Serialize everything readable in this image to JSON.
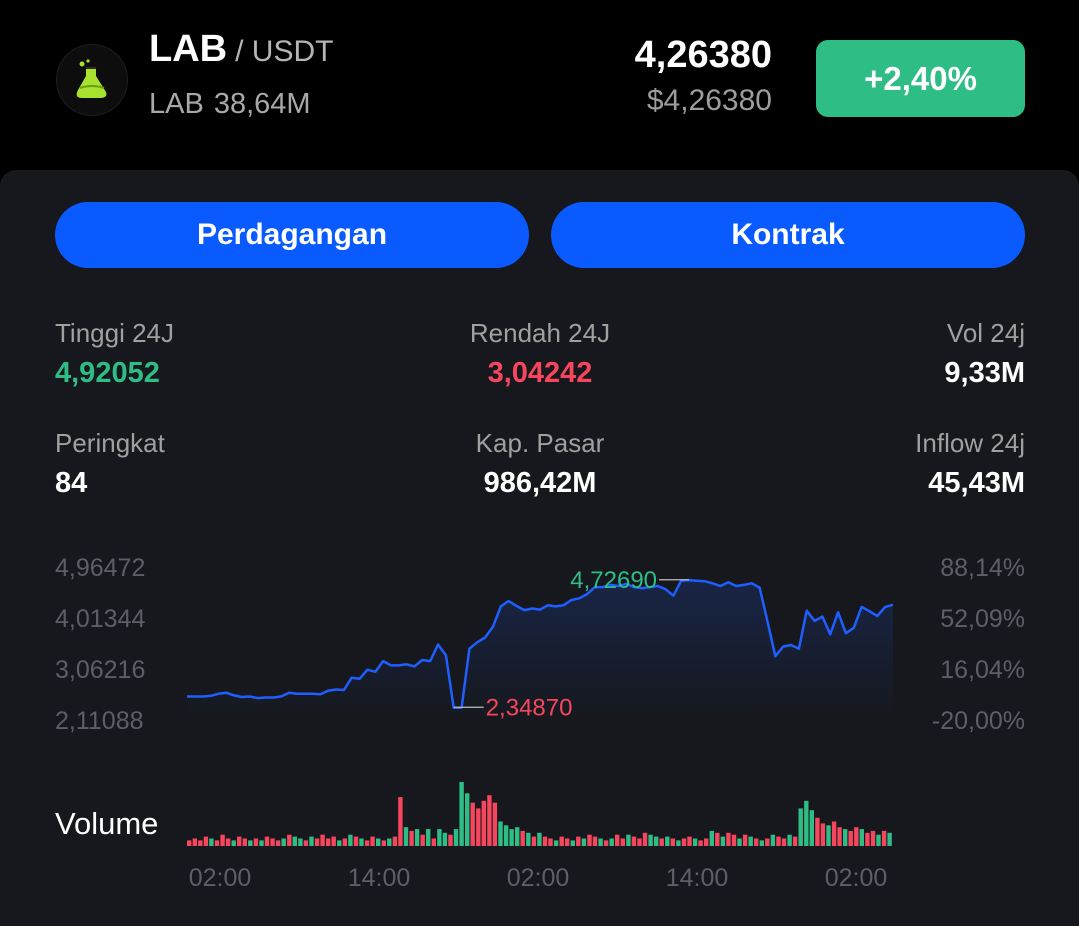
{
  "header": {
    "base": "LAB",
    "quote": "/ USDT",
    "supply_symbol": "LAB",
    "supply_value": "38,64M",
    "price": "4,26380",
    "price_usd": "$4,26380",
    "change": "+2,40%",
    "logo_icon": "flask-icon"
  },
  "actions": {
    "trade_label": "Perdagangan",
    "contract_label": "Kontrak"
  },
  "stats": {
    "high_label": "Tinggi 24J",
    "high_value": "4,92052",
    "low_label": "Rendah 24J",
    "low_value": "3,04242",
    "vol_label": "Vol 24j",
    "vol_value": "9,33M",
    "rank_label": "Peringkat",
    "rank_value": "84",
    "mcap_label": "Kap. Pasar",
    "mcap_value": "986,42M",
    "inflow_label": "Inflow 24j",
    "inflow_value": "45,43M"
  },
  "colors": {
    "up": "#2ebd85",
    "down": "#f6465d",
    "line": "#1f5eff",
    "accent_button": "#0a5bff"
  },
  "chart_data": {
    "type": "line",
    "y_ticks_left": [
      "4,96472",
      "4,01344",
      "3,06216",
      "2,11088"
    ],
    "y_ticks_right": [
      "88,14%",
      "52,09%",
      "16,04%",
      "-20,00%"
    ],
    "x_ticks": [
      "02:00",
      "14:00",
      "02:00",
      "14:00",
      "02:00"
    ],
    "ylim": [
      2.11088,
      4.96472
    ],
    "max_label": "4,72690",
    "min_label": "2,34870",
    "max_value": 4.7269,
    "min_value": 2.3487,
    "volume_label": "Volume",
    "price": [
      2.55,
      2.55,
      2.55,
      2.56,
      2.6,
      2.62,
      2.57,
      2.54,
      2.55,
      2.52,
      2.53,
      2.53,
      2.55,
      2.62,
      2.6,
      2.6,
      2.6,
      2.59,
      2.66,
      2.68,
      2.67,
      2.9,
      2.88,
      3.05,
      3.01,
      3.21,
      3.13,
      3.13,
      3.15,
      3.11,
      3.23,
      3.21,
      3.52,
      3.32,
      2.34,
      2.34,
      3.44,
      3.56,
      3.65,
      3.85,
      4.23,
      4.33,
      4.24,
      4.16,
      4.19,
      4.17,
      4.25,
      4.23,
      4.25,
      4.35,
      4.38,
      4.46,
      4.59,
      4.59,
      4.63,
      4.61,
      4.65,
      4.59,
      4.57,
      4.59,
      4.61,
      4.55,
      4.43,
      4.71,
      4.72,
      4.71,
      4.7,
      4.66,
      4.61,
      4.68,
      4.61,
      4.63,
      4.66,
      4.58,
      3.95,
      3.3,
      3.48,
      3.51,
      3.44,
      4.15,
      3.96,
      4.04,
      3.71,
      4.12,
      3.73,
      3.83,
      4.22,
      4.14,
      4.05,
      4.22,
      4.26
    ],
    "volume": [
      3,
      4,
      3,
      5,
      4,
      3,
      6,
      4,
      3,
      5,
      4,
      3,
      4,
      3,
      5,
      4,
      3,
      4,
      6,
      5,
      4,
      3,
      5,
      4,
      6,
      4,
      5,
      3,
      4,
      6,
      5,
      4,
      3,
      5,
      4,
      3,
      4,
      5,
      26,
      10,
      8,
      9,
      6,
      9,
      4,
      9,
      7,
      6,
      9,
      34,
      28,
      23,
      20,
      24,
      27,
      23,
      13,
      11,
      9,
      10,
      8,
      7,
      5,
      7,
      5,
      4,
      3,
      5,
      4,
      3,
      5,
      4,
      6,
      5,
      4,
      3,
      4,
      6,
      4,
      6,
      5,
      4,
      7,
      6,
      5,
      4,
      5,
      4,
      3,
      4,
      5,
      4,
      3,
      4,
      8,
      7,
      5,
      7,
      6,
      4,
      6,
      5,
      4,
      3,
      4,
      6,
      5,
      4,
      6,
      5,
      20,
      24,
      19,
      15,
      12,
      11,
      13,
      10,
      9,
      8,
      10,
      9,
      7,
      8,
      6,
      8,
      7
    ],
    "volume_up": [
      false,
      false,
      false,
      false,
      true,
      false,
      false,
      false,
      true,
      false,
      false,
      true,
      false,
      true,
      false,
      false,
      false,
      true,
      false,
      true,
      true,
      false,
      true,
      false,
      false,
      false,
      false,
      true,
      false,
      true,
      false,
      true,
      false,
      false,
      true,
      false,
      true,
      false,
      false,
      true,
      false,
      true,
      false,
      true,
      false,
      true,
      true,
      false,
      true,
      true,
      true,
      false,
      false,
      false,
      false,
      false,
      true,
      true,
      true,
      true,
      false,
      true,
      false,
      true,
      false,
      false,
      true,
      false,
      false,
      true,
      false,
      true,
      false,
      false,
      true,
      false,
      true,
      false,
      false,
      true,
      false,
      false,
      false,
      true,
      true,
      false,
      true,
      false,
      true,
      false,
      false,
      true,
      false,
      false,
      true,
      false,
      true,
      false,
      false,
      true,
      false,
      true,
      false,
      true,
      false,
      true,
      false,
      false,
      true,
      false,
      true,
      true,
      true,
      false,
      false,
      true,
      false,
      false,
      true,
      false,
      false,
      true,
      false,
      false,
      true,
      false,
      true
    ]
  }
}
